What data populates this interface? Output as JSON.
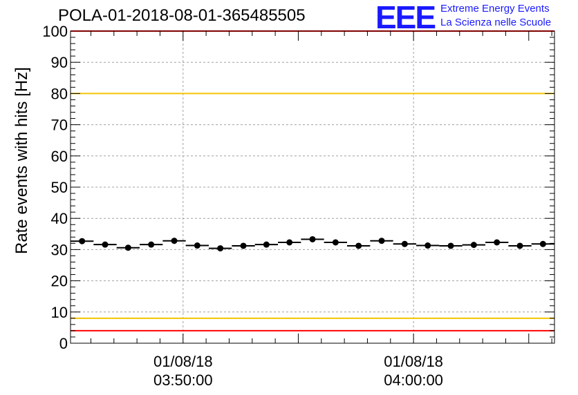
{
  "chart_data": {
    "type": "scatter",
    "title": "POLA-01-2018-08-01-365485505",
    "ylabel": "Rate events with hits [Hz]",
    "xlabel": "",
    "ylim": [
      0,
      100
    ],
    "yticks": [
      0,
      10,
      20,
      30,
      40,
      50,
      60,
      70,
      80,
      90,
      100
    ],
    "x_tick_labels": [
      {
        "date": "01/08/18",
        "time": "03:50:00"
      },
      {
        "date": "01/08/18",
        "time": "04:00:00"
      }
    ],
    "grid": true,
    "error_bars": "horizontal",
    "bin_width_seconds": 60,
    "x_range": [
      "03:45:07",
      "04:06:07"
    ],
    "series": [
      {
        "marker": "filled-circle",
        "color": "#000000",
        "x": [
          "03:45:37",
          "03:46:37",
          "03:47:37",
          "03:48:37",
          "03:49:37",
          "03:50:37",
          "03:51:37",
          "03:52:37",
          "03:53:37",
          "03:54:37",
          "03:55:37",
          "03:56:37",
          "03:57:37",
          "03:58:37",
          "03:59:37",
          "04:00:37",
          "04:01:37",
          "04:02:37",
          "04:03:37",
          "04:04:37",
          "04:05:37"
        ],
        "y": [
          32.7,
          31.6,
          30.6,
          31.6,
          32.8,
          31.3,
          30.4,
          31.2,
          31.6,
          32.3,
          33.3,
          32.3,
          31.2,
          32.8,
          31.8,
          31.3,
          31.2,
          31.5,
          32.3,
          31.2,
          31.8
        ]
      }
    ],
    "reference_lines": [
      {
        "y": 100,
        "color": "#ff0000"
      },
      {
        "y": 80,
        "color": "#f5c400"
      },
      {
        "y": 8,
        "color": "#f5c400"
      },
      {
        "y": 4,
        "color": "#ff0000"
      }
    ]
  },
  "logo": {
    "mark": "EEE",
    "line1": "Extreme Energy Events",
    "line2": "La Scienza nelle Scuole",
    "color": "#1a1aff"
  }
}
